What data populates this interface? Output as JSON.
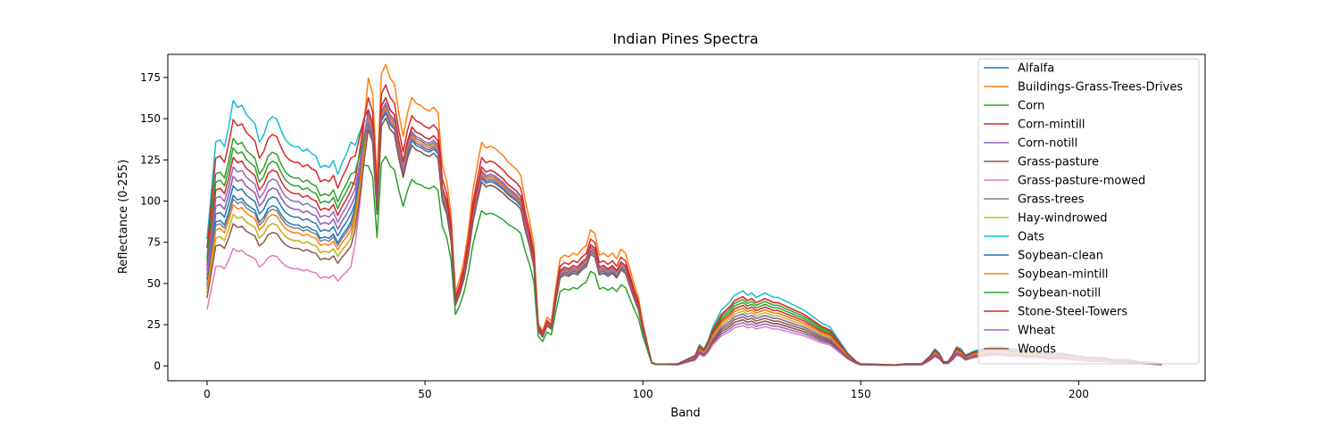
{
  "chart_data": {
    "type": "line",
    "title": "Indian Pines Spectra",
    "xlabel": "Band",
    "ylabel": "Reflectance (0-255)",
    "xlim": [
      -9,
      229
    ],
    "ylim": [
      -9,
      189
    ],
    "xticks": [
      0,
      50,
      100,
      150,
      200
    ],
    "yticks": [
      0,
      25,
      50,
      75,
      100,
      125,
      150,
      175
    ],
    "grid": false,
    "legend_position": "top-right",
    "x_interp": "linear",
    "base_profile": [
      [
        0,
        55
      ],
      [
        2,
        97
      ],
      [
        3,
        98
      ],
      [
        4,
        95
      ],
      [
        5,
        104
      ],
      [
        6,
        115
      ],
      [
        7,
        112
      ],
      [
        8,
        113
      ],
      [
        9,
        109
      ],
      [
        10,
        107
      ],
      [
        11,
        105
      ],
      [
        12,
        97
      ],
      [
        13,
        100
      ],
      [
        14,
        106
      ],
      [
        15,
        108
      ],
      [
        16,
        107
      ],
      [
        17,
        102
      ],
      [
        18,
        98
      ],
      [
        19,
        96
      ],
      [
        20,
        95
      ],
      [
        21,
        95
      ],
      [
        22,
        93
      ],
      [
        23,
        94
      ],
      [
        24,
        92
      ],
      [
        25,
        91
      ],
      [
        26,
        86
      ],
      [
        27,
        87
      ],
      [
        28,
        86
      ],
      [
        29,
        89
      ],
      [
        30,
        83
      ],
      [
        31,
        88
      ],
      [
        32,
        92
      ],
      [
        33,
        97
      ],
      [
        34,
        103
      ],
      [
        35,
        118
      ],
      [
        36,
        135
      ],
      [
        37,
        148
      ],
      [
        38,
        140
      ],
      [
        39,
        95
      ],
      [
        40,
        150
      ],
      [
        41,
        155
      ],
      [
        42,
        148
      ],
      [
        43,
        145
      ],
      [
        44,
        130
      ],
      [
        45,
        118
      ],
      [
        46,
        130
      ],
      [
        47,
        138
      ],
      [
        48,
        135
      ],
      [
        49,
        134
      ],
      [
        50,
        132
      ],
      [
        51,
        131
      ],
      [
        52,
        133
      ],
      [
        53,
        130
      ],
      [
        54,
        103
      ],
      [
        55,
        95
      ],
      [
        56,
        78
      ],
      [
        57,
        38
      ],
      [
        58,
        45
      ],
      [
        59,
        55
      ],
      [
        60,
        70
      ],
      [
        61,
        90
      ],
      [
        62,
        103
      ],
      [
        63,
        115
      ],
      [
        64,
        112
      ],
      [
        65,
        113
      ],
      [
        66,
        112
      ],
      [
        67,
        110
      ],
      [
        68,
        108
      ],
      [
        69,
        105
      ],
      [
        70,
        103
      ],
      [
        71,
        101
      ],
      [
        72,
        98
      ],
      [
        73,
        85
      ],
      [
        74,
        75
      ],
      [
        75,
        62
      ],
      [
        76,
        22
      ],
      [
        77,
        18
      ],
      [
        78,
        25
      ],
      [
        79,
        23
      ],
      [
        80,
        40
      ],
      [
        81,
        55
      ],
      [
        82,
        57
      ],
      [
        83,
        56
      ],
      [
        84,
        58
      ],
      [
        85,
        57
      ],
      [
        86,
        60
      ],
      [
        87,
        62
      ],
      [
        88,
        70
      ],
      [
        89,
        68
      ],
      [
        90,
        57
      ],
      [
        91,
        58
      ],
      [
        92,
        56
      ],
      [
        93,
        58
      ],
      [
        94,
        55
      ],
      [
        95,
        60
      ],
      [
        96,
        58
      ],
      [
        97,
        50
      ],
      [
        98,
        42
      ],
      [
        99,
        35
      ],
      [
        100,
        22
      ],
      [
        101,
        12
      ],
      [
        102,
        2
      ],
      [
        103,
        1
      ],
      [
        108,
        1
      ],
      [
        110,
        3
      ],
      [
        112,
        5
      ],
      [
        113,
        10
      ],
      [
        114,
        8
      ],
      [
        115,
        12
      ],
      [
        116,
        18
      ],
      [
        117,
        22
      ],
      [
        118,
        26
      ],
      [
        120,
        30
      ],
      [
        121,
        33
      ],
      [
        122,
        34
      ],
      [
        123,
        35
      ],
      [
        124,
        33
      ],
      [
        125,
        34
      ],
      [
        126,
        32
      ],
      [
        127,
        33
      ],
      [
        128,
        34
      ],
      [
        129,
        33
      ],
      [
        130,
        32
      ],
      [
        131,
        32
      ],
      [
        132,
        31
      ],
      [
        133,
        30
      ],
      [
        135,
        28
      ],
      [
        137,
        26
      ],
      [
        139,
        23
      ],
      [
        141,
        20
      ],
      [
        143,
        18
      ],
      [
        145,
        12
      ],
      [
        147,
        6
      ],
      [
        149,
        2
      ],
      [
        150,
        1
      ],
      [
        158,
        0.5
      ],
      [
        160,
        1
      ],
      [
        164,
        1
      ],
      [
        166,
        5
      ],
      [
        167,
        8
      ],
      [
        168,
        6
      ],
      [
        169,
        2
      ],
      [
        170,
        2
      ],
      [
        171,
        5
      ],
      [
        172,
        9
      ],
      [
        173,
        8
      ],
      [
        174,
        5
      ],
      [
        175,
        6
      ],
      [
        176,
        7
      ],
      [
        178,
        8
      ],
      [
        180,
        9
      ],
      [
        182,
        9
      ],
      [
        184,
        8
      ],
      [
        186,
        8
      ],
      [
        188,
        7
      ],
      [
        190,
        7
      ],
      [
        193,
        6
      ],
      [
        196,
        6
      ],
      [
        199,
        5
      ],
      [
        202,
        4
      ],
      [
        205,
        4
      ],
      [
        208,
        3
      ],
      [
        211,
        3
      ],
      [
        214,
        2
      ],
      [
        217,
        1.5
      ],
      [
        219,
        1
      ]
    ],
    "series": [
      {
        "name": "Alfalfa",
        "color": "#1f77b4",
        "scale": [
          0.9,
          1.05,
          1.0
        ]
      },
      {
        "name": "Buildings-Grass-Trees-Drives",
        "color": "#ff7f0e",
        "scale": [
          0.8,
          1.18,
          1.2
        ]
      },
      {
        "name": "Corn",
        "color": "#2ca02c",
        "scale": [
          1.15,
          0.82,
          1.1
        ]
      },
      {
        "name": "Corn-mintill",
        "color": "#d62728",
        "scale": [
          1.1,
          1.1,
          1.05
        ]
      },
      {
        "name": "Corn-notill",
        "color": "#9467bd",
        "scale": [
          1.05,
          1.03,
          0.75
        ]
      },
      {
        "name": "Grass-pasture",
        "color": "#8c564b",
        "scale": [
          1.0,
          1.0,
          0.85
        ]
      },
      {
        "name": "Grass-pasture-mowed",
        "color": "#e377c2",
        "scale": [
          0.62,
          1.02,
          0.7
        ]
      },
      {
        "name": "Grass-trees",
        "color": "#7f7f7f",
        "scale": [
          0.88,
          1.02,
          0.8
        ]
      },
      {
        "name": "Hay-windrowed",
        "color": "#bcbd22",
        "scale": [
          0.8,
          1.0,
          0.95
        ]
      },
      {
        "name": "Oats",
        "color": "#17becf",
        "scale": [
          1.4,
          1.0,
          1.3
        ]
      },
      {
        "name": "Soybean-clean",
        "color": "#1f77b4",
        "scale": [
          0.95,
          0.99,
          0.9
        ]
      },
      {
        "name": "Soybean-mintill",
        "color": "#ff7f0e",
        "scale": [
          0.85,
          1.01,
          1.0
        ]
      },
      {
        "name": "Soybean-notill",
        "color": "#2ca02c",
        "scale": [
          1.2,
          0.97,
          1.15
        ]
      },
      {
        "name": "Stone-Steel-Towers",
        "color": "#d62728",
        "scale": [
          1.3,
          1.05,
          1.2
        ]
      },
      {
        "name": "Wheat",
        "color": "#9467bd",
        "scale": [
          1.0,
          1.0,
          0.9
        ]
      },
      {
        "name": "Woods",
        "color": "#8c564b",
        "scale": [
          0.75,
          0.97,
          0.8
        ]
      }
    ]
  }
}
